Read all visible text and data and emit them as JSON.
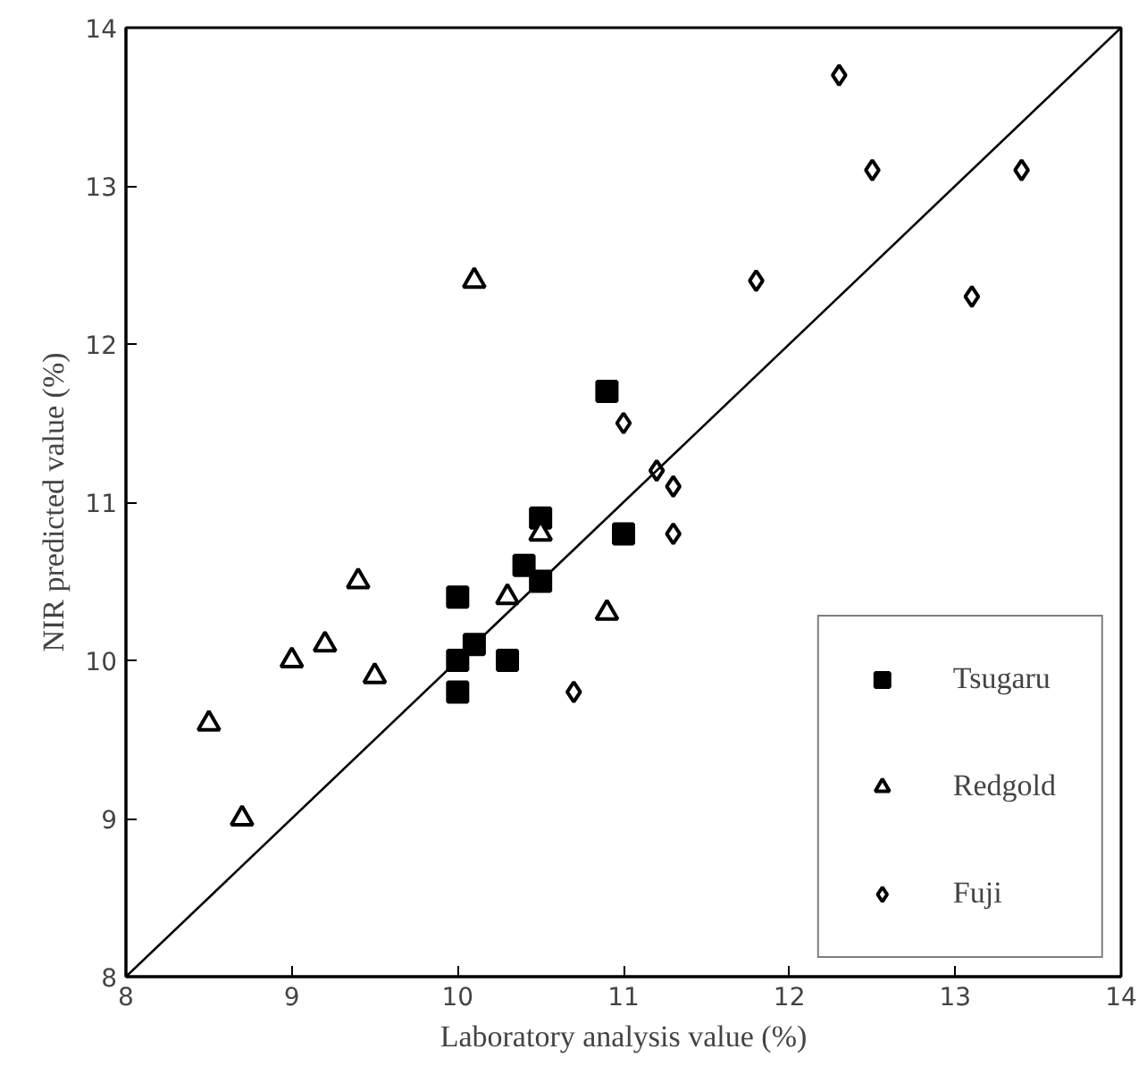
{
  "chart_data": {
    "type": "scatter",
    "xlabel": "Laboratory analysis value (%)",
    "ylabel": "NIR predicted value (%)",
    "xlim": [
      8,
      14
    ],
    "ylim": [
      8,
      14
    ],
    "xticks": [
      8,
      9,
      10,
      11,
      12,
      13,
      14
    ],
    "yticks": [
      8,
      9,
      10,
      11,
      12,
      13,
      14
    ],
    "grid": false,
    "legend": "bottom right",
    "series": [
      {
        "name": "Tsugaru",
        "color": "#000000",
        "marker": "square",
        "x": [
          10.0,
          10.1,
          10.0,
          10.0,
          10.3,
          10.4,
          10.5,
          10.5,
          11.0,
          10.9
        ],
        "values": [
          10.4,
          10.1,
          10.0,
          9.8,
          10.0,
          10.6,
          10.5,
          10.9,
          10.8,
          11.7
        ]
      },
      {
        "name": "Redgold",
        "color": "#000000",
        "marker": "triangle",
        "x": [
          9.4,
          9.2,
          9.0,
          9.5,
          8.5,
          8.7,
          10.3,
          10.9,
          10.5,
          10.1
        ],
        "values": [
          10.5,
          10.1,
          10.0,
          9.9,
          9.6,
          9.0,
          10.4,
          10.3,
          10.8,
          12.4
        ]
      },
      {
        "name": "Fuji",
        "color": "#000000",
        "marker": "diamond",
        "x": [
          12.3,
          12.5,
          13.4,
          11.8,
          13.1,
          11.0,
          11.2,
          11.3,
          11.3,
          10.7
        ],
        "values": [
          13.7,
          13.1,
          13.1,
          12.4,
          12.3,
          11.5,
          11.2,
          11.1,
          10.8,
          9.8
        ]
      },
      {
        "type": "line",
        "color": "#000000",
        "x": [
          8,
          14
        ],
        "values": [
          8,
          14
        ]
      }
    ]
  }
}
